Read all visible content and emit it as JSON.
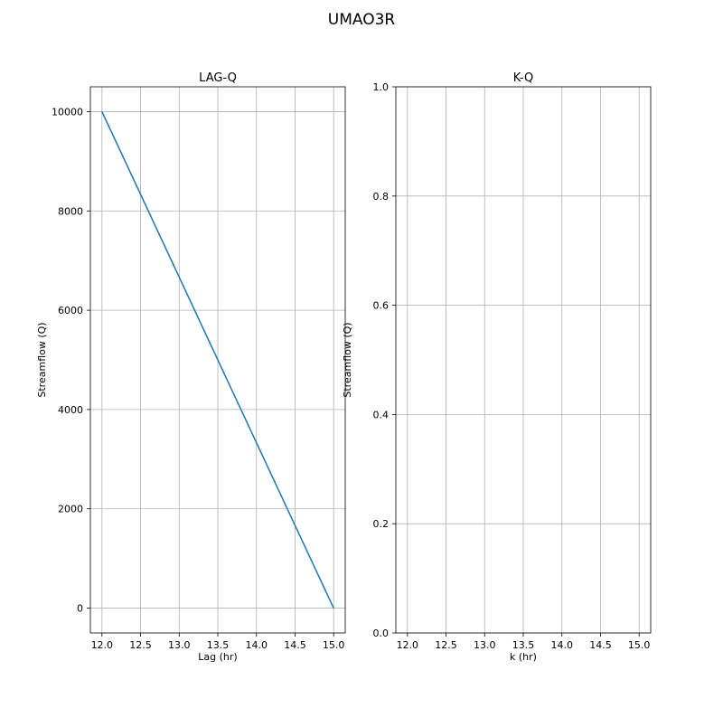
{
  "figure": {
    "suptitle": "UMAO3R"
  },
  "chart_data": [
    {
      "type": "line",
      "title": "LAG-Q",
      "xlabel": "Lag (hr)",
      "ylabel": "Streamflow (Q)",
      "xlim": [
        11.85,
        15.15
      ],
      "ylim": [
        -500,
        10500
      ],
      "xticks": [
        12.0,
        12.5,
        13.0,
        13.5,
        14.0,
        14.5,
        15.0
      ],
      "xtick_labels": [
        "12.0",
        "12.5",
        "13.0",
        "13.5",
        "14.0",
        "14.5",
        "15.0"
      ],
      "yticks": [
        0,
        2000,
        4000,
        6000,
        8000,
        10000
      ],
      "ytick_labels": [
        "0",
        "2000",
        "4000",
        "6000",
        "8000",
        "10000"
      ],
      "grid": true,
      "series": [
        {
          "color": "#1f77b4",
          "x": [
            12.0,
            15.0
          ],
          "y": [
            10000,
            0
          ]
        }
      ]
    },
    {
      "type": "line",
      "title": "K-Q",
      "xlabel": "k (hr)",
      "ylabel": "Streamflow (Q)",
      "xlim": [
        11.85,
        15.15
      ],
      "ylim": [
        0.0,
        1.0
      ],
      "xticks": [
        12.0,
        12.5,
        13.0,
        13.5,
        14.0,
        14.5,
        15.0
      ],
      "xtick_labels": [
        "12.0",
        "12.5",
        "13.0",
        "13.5",
        "14.0",
        "14.5",
        "15.0"
      ],
      "yticks": [
        0.0,
        0.2,
        0.4,
        0.6,
        0.8,
        1.0
      ],
      "ytick_labels": [
        "0.0",
        "0.2",
        "0.4",
        "0.6",
        "0.8",
        "1.0"
      ],
      "grid": true,
      "series": []
    }
  ]
}
